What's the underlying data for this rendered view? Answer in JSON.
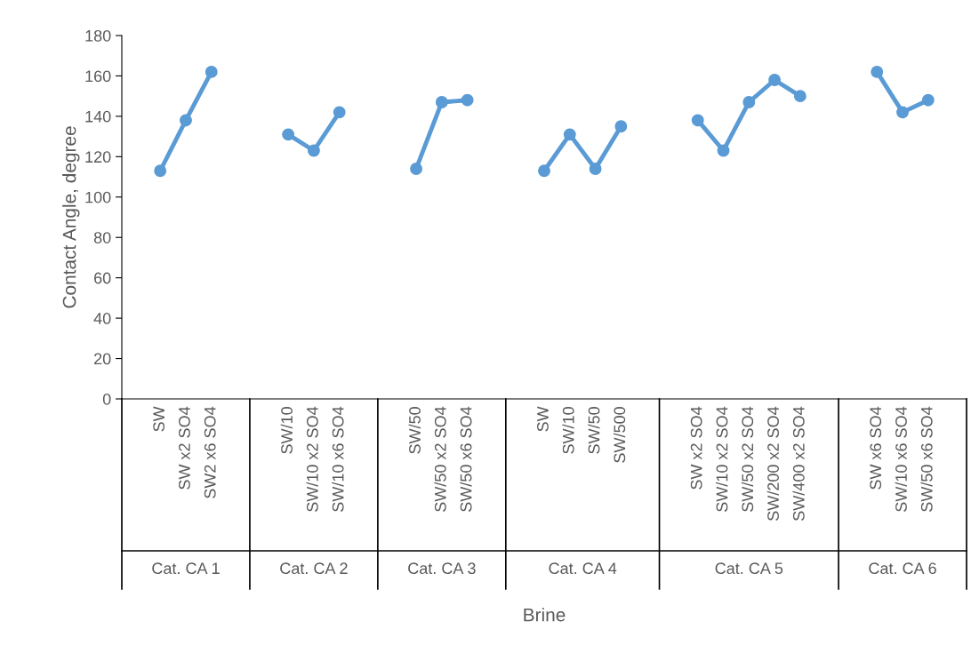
{
  "chart_data": {
    "type": "line",
    "xlabel": "Brine",
    "ylabel": "Contact Angle, degree",
    "categories": [
      null,
      "SW",
      "SW x2 SO4",
      "SW2 x6 SO4",
      null,
      null,
      "SW/10",
      "SW/10 x2 SO4",
      "SW/10 x6 SO4",
      null,
      null,
      "SW/50",
      "SW/50 x2 SO4",
      "SW/50 x6 SO4",
      null,
      null,
      "SW",
      "SW/10",
      "SW/50",
      "SW/500",
      null,
      null,
      "SW x2 SO4",
      "SW/10 x2 SO4",
      "SW/50 x2 SO4",
      "SW/200 x2 SO4",
      "SW/400 x2 SO4",
      null,
      null,
      "SW x6 SO4",
      "SW/10 x6 SO4",
      "SW/50 x6 SO4",
      null
    ],
    "series": [
      {
        "color": "#5b9bd5",
        "values": [
          null,
          113,
          138,
          162,
          null,
          null,
          131,
          123,
          142,
          null,
          null,
          114,
          147,
          148,
          null,
          null,
          113,
          131,
          114,
          135,
          null,
          null,
          138,
          123,
          147,
          158,
          150,
          null,
          null,
          162,
          142,
          148,
          null
        ]
      }
    ],
    "annotations": [
      "Cat. CA 1",
      "Cat. CA 2",
      "Cat. CA 3",
      "Cat. CA 4",
      "Cat. CA 5",
      "Cat. CA 6"
    ],
    "ylim": [
      0,
      180
    ],
    "yticks": [
      0,
      20,
      40,
      60,
      80,
      100,
      120,
      140,
      160,
      180
    ],
    "marker": "circle",
    "line_style": "solid",
    "grid": false,
    "legend": false
  }
}
